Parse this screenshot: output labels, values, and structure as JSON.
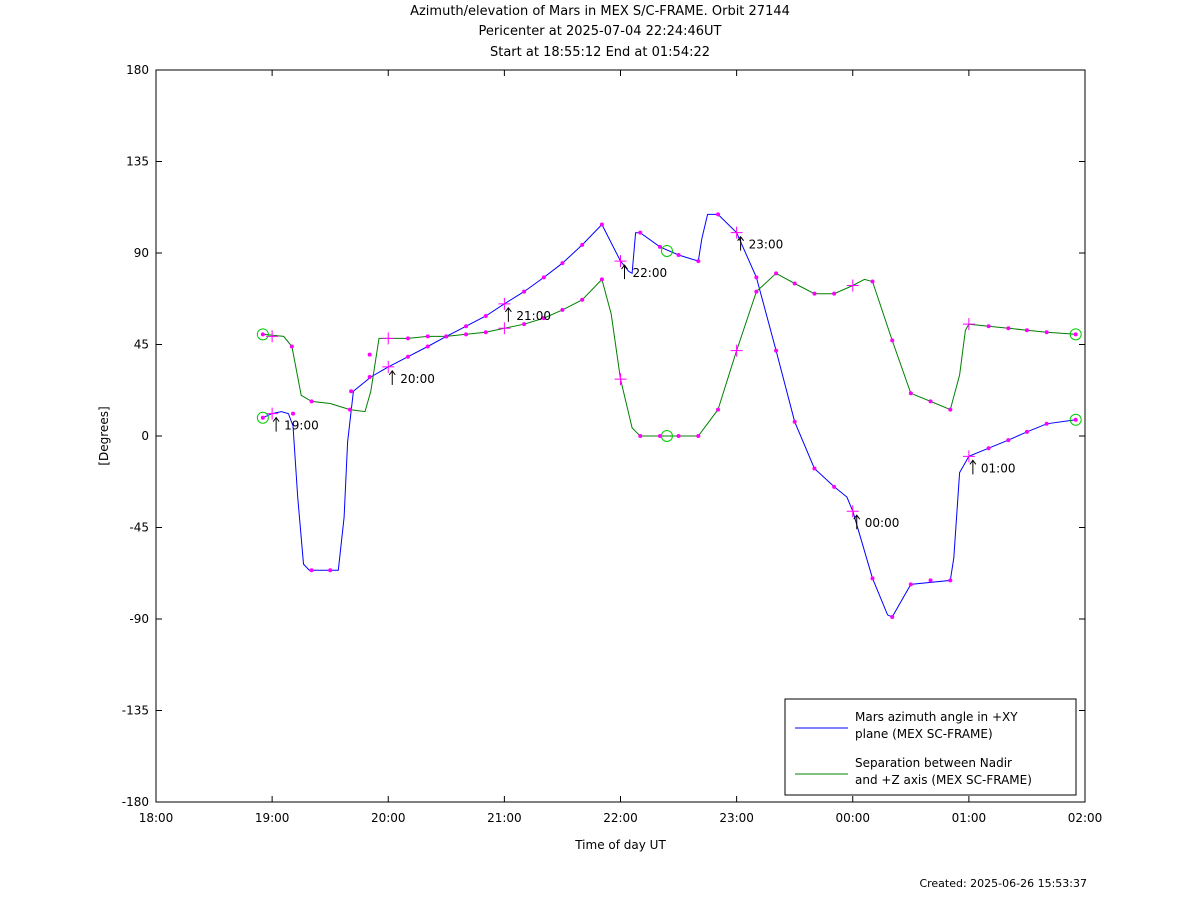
{
  "title": {
    "line1": "Azimuth/elevation of Mars in MEX S/C-FRAME.  Orbit 27144",
    "line2": "Pericenter at 2025-07-04 22:24:46UT",
    "line3": "Start at 18:55:12 End at 01:54:22"
  },
  "created": "Created: 2025-06-26 15:53:37",
  "chart_data": {
    "type": "line",
    "xlabel": "Time of day UT",
    "ylabel": "[Degrees]",
    "x_unit": "hours since 18:00 UT",
    "xlim": [
      0,
      8
    ],
    "ylim": [
      -180,
      180
    ],
    "x_ticks": [
      {
        "x": 0,
        "label": "18:00"
      },
      {
        "x": 1,
        "label": "19:00"
      },
      {
        "x": 2,
        "label": "20:00"
      },
      {
        "x": 3,
        "label": "21:00"
      },
      {
        "x": 4,
        "label": "22:00"
      },
      {
        "x": 5,
        "label": "23:00"
      },
      {
        "x": 6,
        "label": "00:00"
      },
      {
        "x": 7,
        "label": "01:00"
      },
      {
        "x": 8,
        "label": "02:00"
      }
    ],
    "y_ticks": [
      180,
      135,
      90,
      45,
      0,
      -45,
      -90,
      -135,
      -180
    ],
    "colors": {
      "azimuth": "#0000ff",
      "separation": "#008000",
      "markers": "#ff00ff",
      "circles": "#00cc00"
    },
    "legend": {
      "position": "bottom-right"
    },
    "series": [
      {
        "name": "Mars azimuth angle in +XY plane (MEX SC-FRAME)",
        "legend_line1": "Mars azimuth angle in +XY",
        "legend_line2": "plane (MEX SC-FRAME)",
        "key": "azimuth",
        "points": [
          [
            0.92,
            9
          ],
          [
            1.0,
            11
          ],
          [
            1.08,
            12
          ],
          [
            1.14,
            11
          ],
          [
            1.18,
            5
          ],
          [
            1.22,
            -30
          ],
          [
            1.27,
            -63
          ],
          [
            1.32,
            -66
          ],
          [
            1.5,
            -66
          ],
          [
            1.57,
            -66
          ],
          [
            1.62,
            -40
          ],
          [
            1.65,
            -3
          ],
          [
            1.7,
            22
          ],
          [
            1.85,
            29
          ],
          [
            2.0,
            34
          ],
          [
            2.17,
            39
          ],
          [
            2.34,
            44
          ],
          [
            2.5,
            49
          ],
          [
            2.67,
            54
          ],
          [
            2.84,
            59
          ],
          [
            3.0,
            65
          ],
          [
            3.17,
            71
          ],
          [
            3.34,
            78
          ],
          [
            3.5,
            85
          ],
          [
            3.67,
            94
          ],
          [
            3.84,
            104
          ],
          [
            4.0,
            86
          ],
          [
            4.07,
            81
          ],
          [
            4.1,
            80
          ],
          [
            4.13,
            100
          ],
          [
            4.17,
            100
          ],
          [
            4.34,
            93
          ],
          [
            4.5,
            89
          ],
          [
            4.67,
            86
          ],
          [
            4.7,
            97
          ],
          [
            4.75,
            109
          ],
          [
            4.84,
            109
          ],
          [
            5.0,
            100
          ],
          [
            5.17,
            78
          ],
          [
            5.34,
            42
          ],
          [
            5.5,
            7
          ],
          [
            5.67,
            -16
          ],
          [
            5.84,
            -25
          ],
          [
            5.95,
            -30
          ],
          [
            6.0,
            -37
          ],
          [
            6.17,
            -70
          ],
          [
            6.3,
            -88
          ],
          [
            6.34,
            -89
          ],
          [
            6.5,
            -73
          ],
          [
            6.84,
            -71
          ],
          [
            6.87,
            -60
          ],
          [
            6.92,
            -18
          ],
          [
            7.0,
            -10
          ],
          [
            7.17,
            -6
          ],
          [
            7.34,
            -2
          ],
          [
            7.5,
            2
          ],
          [
            7.67,
            6
          ],
          [
            7.92,
            8
          ]
        ],
        "markers": [
          [
            0.92,
            9
          ],
          [
            1.18,
            11
          ],
          [
            1.34,
            -66
          ],
          [
            1.5,
            -66
          ],
          [
            1.68,
            22
          ],
          [
            1.84,
            29
          ],
          [
            2.17,
            39
          ],
          [
            2.34,
            44
          ],
          [
            2.5,
            49
          ],
          [
            2.67,
            54
          ],
          [
            2.84,
            59
          ],
          [
            3.17,
            71
          ],
          [
            3.34,
            78
          ],
          [
            3.5,
            85
          ],
          [
            3.67,
            94
          ],
          [
            3.84,
            104
          ],
          [
            4.17,
            100
          ],
          [
            4.34,
            93
          ],
          [
            4.5,
            89
          ],
          [
            4.67,
            86
          ],
          [
            4.84,
            109
          ],
          [
            5.17,
            78
          ],
          [
            5.34,
            42
          ],
          [
            5.5,
            7
          ],
          [
            5.67,
            -16
          ],
          [
            5.84,
            -25
          ],
          [
            6.17,
            -70
          ],
          [
            6.34,
            -89
          ],
          [
            6.5,
            -73
          ],
          [
            6.67,
            -71
          ],
          [
            6.84,
            -71
          ],
          [
            7.17,
            -6
          ],
          [
            7.34,
            -2
          ],
          [
            7.5,
            2
          ],
          [
            7.67,
            6
          ],
          [
            7.92,
            8
          ]
        ],
        "crosses": [
          [
            1.0,
            11
          ],
          [
            2.0,
            34
          ],
          [
            3.0,
            65
          ],
          [
            4.0,
            86
          ],
          [
            5.0,
            100
          ],
          [
            6.0,
            -37
          ],
          [
            7.0,
            -10
          ]
        ],
        "circles": [
          [
            0.92,
            9
          ],
          [
            7.92,
            8
          ]
        ],
        "time_labels": [
          {
            "x": 1.0,
            "y": 11,
            "text": "19:00"
          },
          {
            "x": 2.0,
            "y": 34,
            "text": "20:00"
          },
          {
            "x": 3.0,
            "y": 65,
            "text": "21:00"
          },
          {
            "x": 4.0,
            "y": 86,
            "text": "22:00"
          },
          {
            "x": 5.0,
            "y": 100,
            "text": "23:00"
          },
          {
            "x": 6.0,
            "y": -37,
            "text": "00:00"
          },
          {
            "x": 7.0,
            "y": -10,
            "text": "01:00"
          }
        ]
      },
      {
        "name": "Separation between Nadir and +Z axis (MEX SC-FRAME)",
        "legend_line1": "Separation between Nadir",
        "legend_line2": "and +Z axis (MEX SC-FRAME)",
        "key": "separation",
        "points": [
          [
            0.92,
            50
          ],
          [
            1.1,
            49
          ],
          [
            1.17,
            44
          ],
          [
            1.25,
            20
          ],
          [
            1.34,
            17
          ],
          [
            1.5,
            16
          ],
          [
            1.67,
            13
          ],
          [
            1.8,
            12
          ],
          [
            1.85,
            22
          ],
          [
            1.92,
            48
          ],
          [
            2.0,
            48
          ],
          [
            2.17,
            48
          ],
          [
            2.34,
            49
          ],
          [
            2.5,
            49
          ],
          [
            2.67,
            50
          ],
          [
            2.84,
            51
          ],
          [
            3.0,
            53
          ],
          [
            3.17,
            55
          ],
          [
            3.34,
            58
          ],
          [
            3.5,
            62
          ],
          [
            3.67,
            67
          ],
          [
            3.84,
            77
          ],
          [
            3.92,
            60
          ],
          [
            4.0,
            28
          ],
          [
            4.1,
            4
          ],
          [
            4.17,
            0
          ],
          [
            4.34,
            0
          ],
          [
            4.5,
            0
          ],
          [
            4.67,
            0
          ],
          [
            4.84,
            13
          ],
          [
            5.0,
            42
          ],
          [
            5.17,
            71
          ],
          [
            5.34,
            80
          ],
          [
            5.5,
            75
          ],
          [
            5.67,
            70
          ],
          [
            5.84,
            70
          ],
          [
            6.0,
            74
          ],
          [
            6.1,
            77
          ],
          [
            6.17,
            76
          ],
          [
            6.34,
            47
          ],
          [
            6.5,
            21
          ],
          [
            6.67,
            17
          ],
          [
            6.84,
            13
          ],
          [
            6.92,
            30
          ],
          [
            6.97,
            52
          ],
          [
            7.0,
            55
          ],
          [
            7.17,
            54
          ],
          [
            7.34,
            53
          ],
          [
            7.5,
            52
          ],
          [
            7.67,
            51
          ],
          [
            7.92,
            50
          ]
        ],
        "markers": [
          [
            0.92,
            50
          ],
          [
            1.17,
            44
          ],
          [
            1.34,
            17
          ],
          [
            1.67,
            13
          ],
          [
            1.84,
            40
          ],
          [
            2.17,
            48
          ],
          [
            2.34,
            49
          ],
          [
            2.5,
            49
          ],
          [
            2.67,
            50
          ],
          [
            2.84,
            51
          ],
          [
            3.17,
            55
          ],
          [
            3.34,
            58
          ],
          [
            3.5,
            62
          ],
          [
            3.67,
            67
          ],
          [
            3.84,
            77
          ],
          [
            4.17,
            0
          ],
          [
            4.34,
            0
          ],
          [
            4.5,
            0
          ],
          [
            4.67,
            0
          ],
          [
            4.84,
            13
          ],
          [
            5.17,
            71
          ],
          [
            5.34,
            80
          ],
          [
            5.5,
            75
          ],
          [
            5.67,
            70
          ],
          [
            5.84,
            70
          ],
          [
            6.17,
            76
          ],
          [
            6.34,
            47
          ],
          [
            6.5,
            21
          ],
          [
            6.67,
            17
          ],
          [
            6.84,
            13
          ],
          [
            7.17,
            54
          ],
          [
            7.34,
            53
          ],
          [
            7.5,
            52
          ],
          [
            7.67,
            51
          ],
          [
            7.92,
            50
          ]
        ],
        "crosses": [
          [
            1.0,
            49
          ],
          [
            2.0,
            48
          ],
          [
            3.0,
            53
          ],
          [
            4.0,
            28
          ],
          [
            5.0,
            42
          ],
          [
            6.0,
            74
          ],
          [
            7.0,
            55
          ]
        ],
        "circles": [
          [
            0.92,
            50
          ],
          [
            4.4,
            0
          ],
          [
            7.92,
            50
          ]
        ]
      }
    ],
    "extra_circles": [
      [
        4.4,
        91
      ]
    ]
  }
}
